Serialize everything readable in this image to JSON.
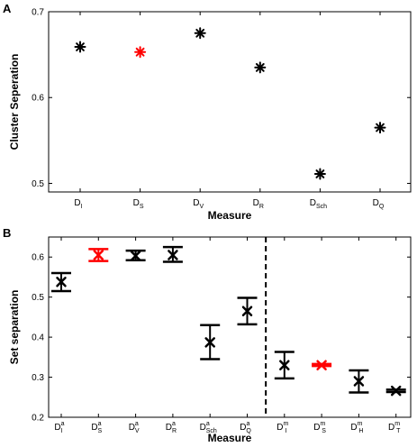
{
  "chart_data": [
    {
      "panel_label": "A",
      "type": "scatter",
      "xlabel": "Measure",
      "ylabel": "Cluster Seperation",
      "ylim": [
        0.49,
        0.7
      ],
      "yticks": [
        "0.5",
        "0.6",
        "0.7"
      ],
      "categories": [
        {
          "base": "D",
          "sub": "I",
          "sup": ""
        },
        {
          "base": "D",
          "sub": "S",
          "sup": ""
        },
        {
          "base": "D",
          "sub": "V",
          "sup": ""
        },
        {
          "base": "D",
          "sub": "R",
          "sup": ""
        },
        {
          "base": "D",
          "sub": "Sch",
          "sup": ""
        },
        {
          "base": "D",
          "sub": "Q",
          "sup": ""
        }
      ],
      "values": [
        0.659,
        0.653,
        0.675,
        0.635,
        0.511,
        0.565
      ],
      "colors": [
        "#000000",
        "#ff0000",
        "#000000",
        "#000000",
        "#000000",
        "#000000"
      ],
      "marker": "asterisk",
      "grid": false
    },
    {
      "panel_label": "B",
      "type": "errorbar",
      "xlabel": "Measure",
      "ylabel": "Set separation",
      "ylim": [
        0.2,
        0.65
      ],
      "yticks": [
        "0.2",
        "0.3",
        "0.4",
        "0.5",
        "0.6"
      ],
      "categories": [
        {
          "base": "D",
          "sub": "I",
          "sup": "a"
        },
        {
          "base": "D",
          "sub": "S",
          "sup": "a"
        },
        {
          "base": "D",
          "sub": "V",
          "sup": "a"
        },
        {
          "base": "D",
          "sub": "R",
          "sup": "a"
        },
        {
          "base": "D",
          "sub": "Sch",
          "sup": "a"
        },
        {
          "base": "D",
          "sub": "Q",
          "sup": "a"
        },
        {
          "base": "D",
          "sub": "I",
          "sup": "m"
        },
        {
          "base": "D",
          "sub": "S",
          "sup": "m"
        },
        {
          "base": "D",
          "sub": "H",
          "sup": "m"
        },
        {
          "base": "D",
          "sub": "T",
          "sup": "m"
        }
      ],
      "values": [
        0.538,
        0.605,
        0.603,
        0.605,
        0.387,
        0.465,
        0.33,
        0.33,
        0.29,
        0.266
      ],
      "lower": [
        0.515,
        0.59,
        0.592,
        0.588,
        0.345,
        0.432,
        0.297,
        0.328,
        0.262,
        0.263
      ],
      "upper": [
        0.56,
        0.62,
        0.616,
        0.625,
        0.43,
        0.498,
        0.363,
        0.333,
        0.317,
        0.269
      ],
      "colors": [
        "#000000",
        "#ff0000",
        "#000000",
        "#000000",
        "#000000",
        "#000000",
        "#000000",
        "#ff0000",
        "#000000",
        "#000000"
      ],
      "divider_after_index": 5,
      "divider_style": "dashed",
      "marker": "x",
      "grid": false
    }
  ]
}
